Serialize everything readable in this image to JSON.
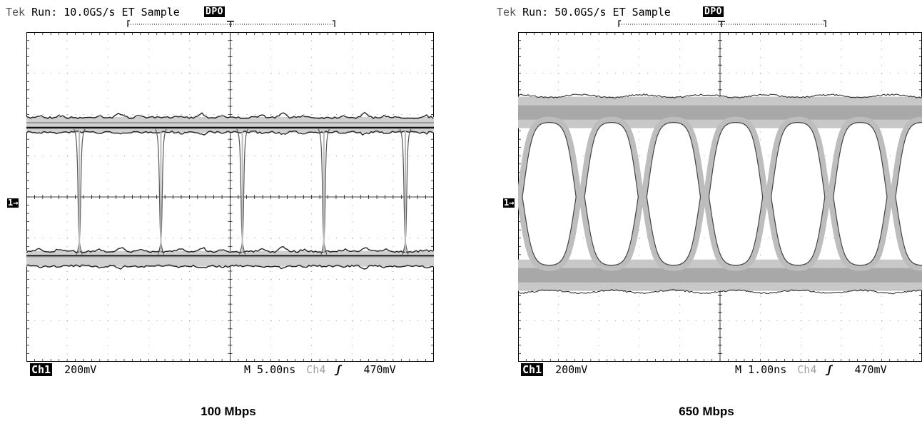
{
  "chart_data": [
    {
      "type": "eye-diagram",
      "header": {
        "brand": "Tek",
        "status": "Run: 10.0GS/s ET Sample",
        "mode_badge": "DPO"
      },
      "footer": {
        "channel": "Ch1",
        "volts_per_div": "200mV",
        "time_per_div": "M 5.00ns",
        "trigger_channel": "Ch4",
        "trigger_slope": "ʃ",
        "trigger_level": "470mV"
      },
      "channel_marker": "1→",
      "caption": "100 Mbps",
      "divisions": {
        "x": 10,
        "y": 8
      },
      "levels_div": {
        "high": 1.75,
        "low": -1.5
      },
      "unit_intervals_visible": 5,
      "transition_positions_div": [
        1.3,
        3.3,
        5.3,
        7.3,
        9.3
      ]
    },
    {
      "type": "eye-diagram",
      "header": {
        "brand": "Tek",
        "status": "Run: 50.0GS/s ET Sample",
        "mode_badge": "DPO"
      },
      "footer": {
        "channel": "Ch1",
        "volts_per_div": "200mV",
        "time_per_div": "M 1.00ns",
        "trigger_channel": "Ch4",
        "trigger_slope": "ʃ",
        "trigger_level": "470mV"
      },
      "channel_marker": "1→",
      "caption": "650 Mbps",
      "divisions": {
        "x": 10,
        "y": 8
      },
      "levels_div": {
        "high": 2.05,
        "low": -1.9
      },
      "unit_intervals_visible": 6.5,
      "transition_positions_div": [
        0.0,
        1.54,
        3.08,
        4.62,
        6.15,
        7.69,
        9.23
      ]
    }
  ]
}
